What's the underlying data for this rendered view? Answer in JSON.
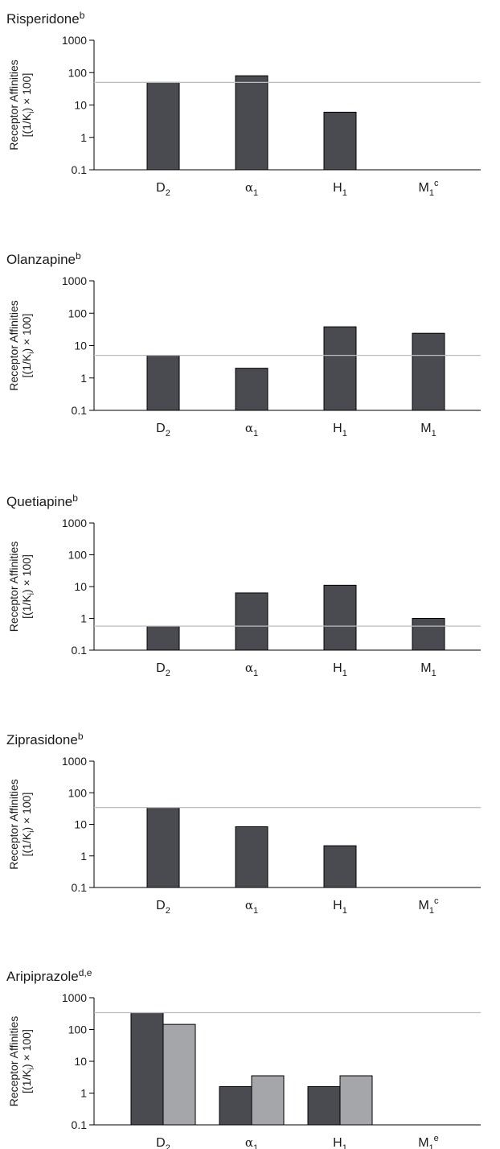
{
  "y_axis_label": [
    "Receptor Affinities",
    "[(1/K",
    "i",
    ") × 100]"
  ],
  "colors": {
    "bar_primary": "#4a4b50",
    "bar_secondary": "#a5a6aa",
    "reference_line": "#bdbdbd",
    "axis": "#000000"
  },
  "chart_data": [
    {
      "type": "bar",
      "title": "Risperidone",
      "title_superscript": "b",
      "yscale": "log",
      "ylim": [
        0.1,
        1000
      ],
      "yticks": [
        "1000",
        "100",
        "10",
        "1",
        "0.1"
      ],
      "categories": [
        {
          "base": "D",
          "sub": "2",
          "sup": "",
          "greek": false
        },
        {
          "base": "α",
          "sub": "1",
          "sup": "",
          "greek": true
        },
        {
          "base": "H",
          "sub": "1",
          "sup": "",
          "greek": false
        },
        {
          "base": "M",
          "sub": "1",
          "sup": "c",
          "greek": false
        }
      ],
      "series": [
        {
          "values": [
            50,
            80,
            6,
            null
          ]
        }
      ],
      "reference_line": 50
    },
    {
      "type": "bar",
      "title": "Olanzapine",
      "title_superscript": "b",
      "yscale": "log",
      "ylim": [
        0.1,
        1000
      ],
      "yticks": [
        "1000",
        "100",
        "10",
        "1",
        "0.1"
      ],
      "categories": [
        {
          "base": "D",
          "sub": "2",
          "sup": "",
          "greek": false
        },
        {
          "base": "α",
          "sub": "1",
          "sup": "",
          "greek": true
        },
        {
          "base": "H",
          "sub": "1",
          "sup": "",
          "greek": false
        },
        {
          "base": "M",
          "sub": "1",
          "sup": "",
          "greek": false
        }
      ],
      "series": [
        {
          "values": [
            5,
            2,
            38,
            24
          ]
        }
      ],
      "reference_line": 5
    },
    {
      "type": "bar",
      "title": "Quetiapine",
      "title_superscript": "b",
      "yscale": "log",
      "ylim": [
        0.1,
        1000
      ],
      "yticks": [
        "1000",
        "100",
        "10",
        "1",
        "0.1"
      ],
      "categories": [
        {
          "base": "D",
          "sub": "2",
          "sup": "",
          "greek": false
        },
        {
          "base": "α",
          "sub": "1",
          "sup": "",
          "greek": true
        },
        {
          "base": "H",
          "sub": "1",
          "sup": "",
          "greek": false
        },
        {
          "base": "M",
          "sub": "1",
          "sup": "",
          "greek": false
        }
      ],
      "series": [
        {
          "values": [
            0.57,
            6.3,
            11,
            1
          ]
        }
      ],
      "reference_line": 0.57
    },
    {
      "type": "bar",
      "title": "Ziprasidone",
      "title_superscript": "b",
      "yscale": "log",
      "ylim": [
        0.1,
        1000
      ],
      "yticks": [
        "1000",
        "100",
        "10",
        "1",
        "0.1"
      ],
      "categories": [
        {
          "base": "D",
          "sub": "2",
          "sup": "",
          "greek": false
        },
        {
          "base": "α",
          "sub": "1",
          "sup": "",
          "greek": true
        },
        {
          "base": "H",
          "sub": "1",
          "sup": "",
          "greek": false
        },
        {
          "base": "M",
          "sub": "1",
          "sup": "c",
          "greek": false
        }
      ],
      "series": [
        {
          "values": [
            34,
            8.4,
            2.1,
            null
          ]
        }
      ],
      "reference_line": 34
    },
    {
      "type": "bar",
      "title": "Aripiprazole",
      "title_superscript": "d,e",
      "yscale": "log",
      "ylim": [
        0.1,
        1000
      ],
      "yticks": [
        "1000",
        "100",
        "10",
        "1",
        "0.1"
      ],
      "categories": [
        {
          "base": "D",
          "sub": "2",
          "sup": "",
          "greek": false
        },
        {
          "base": "α",
          "sub": "1",
          "sup": "",
          "greek": true
        },
        {
          "base": "H",
          "sub": "1",
          "sup": "",
          "greek": false
        },
        {
          "base": "M",
          "sub": "1",
          "sup": "e",
          "greek": false
        }
      ],
      "series": [
        {
          "values": [
            340,
            1.6,
            1.6,
            null
          ]
        },
        {
          "values": [
            145,
            3.5,
            3.5,
            null
          ]
        }
      ],
      "reference_line": 340
    }
  ]
}
